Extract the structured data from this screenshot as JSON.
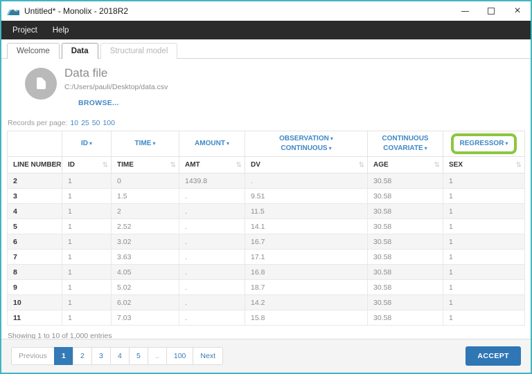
{
  "window": {
    "title": "Untitled* - Monolix - 2018R2"
  },
  "icons": {
    "logo": "monolix-wave-logo",
    "minimize": "minimize-bar",
    "maximize": "maximize-square",
    "close": "×",
    "caret_down": "▾",
    "sort": "⇅",
    "datafile": "document-in-circle"
  },
  "menu": {
    "items": [
      "Project",
      "Help"
    ]
  },
  "tabs": [
    {
      "label": "Welcome",
      "state": "normal"
    },
    {
      "label": "Data",
      "state": "active"
    },
    {
      "label": "Structural model",
      "state": "disabled"
    }
  ],
  "datafile": {
    "title": "Data file",
    "path": "C:/Users/pauli/Desktop/data.csv",
    "browse_label": "BROWSE..."
  },
  "records_per_page": {
    "label": "Records per page:",
    "options": [
      "10",
      "25",
      "50",
      "100"
    ]
  },
  "table": {
    "selectors": [
      {
        "lines": []
      },
      {
        "lines": [
          {
            "text": "ID",
            "caret": true
          }
        ]
      },
      {
        "lines": [
          {
            "text": "TIME",
            "caret": true
          }
        ]
      },
      {
        "lines": [
          {
            "text": "AMOUNT",
            "caret": true
          }
        ]
      },
      {
        "lines": [
          {
            "text": "OBSERVATION",
            "caret": true
          },
          {
            "text": "CONTINUOUS",
            "caret": true
          }
        ]
      },
      {
        "lines": [
          {
            "text": "CONTINUOUS",
            "caret": false
          },
          {
            "text": "COVARIATE",
            "caret": true
          }
        ]
      },
      {
        "lines": [
          {
            "text": "REGRESSOR",
            "caret": true
          }
        ],
        "highlighted": true
      }
    ],
    "columns": [
      {
        "label": "LINE NUMBER",
        "sort": "active"
      },
      {
        "label": "ID",
        "sort": "inactive"
      },
      {
        "label": "TIME",
        "sort": "inactive"
      },
      {
        "label": "AMT",
        "sort": "inactive"
      },
      {
        "label": "DV",
        "sort": "inactive"
      },
      {
        "label": "AGE",
        "sort": "inactive"
      },
      {
        "label": "SEX",
        "sort": "inactive"
      }
    ],
    "rows": [
      [
        "2",
        "1",
        "0",
        "1439.8",
        ".",
        "30.58",
        "1"
      ],
      [
        "3",
        "1",
        "1.5",
        ".",
        "9.51",
        "30.58",
        "1"
      ],
      [
        "4",
        "1",
        "2",
        ".",
        "11.5",
        "30.58",
        "1"
      ],
      [
        "5",
        "1",
        "2.52",
        ".",
        "14.1",
        "30.58",
        "1"
      ],
      [
        "6",
        "1",
        "3.02",
        ".",
        "16.7",
        "30.58",
        "1"
      ],
      [
        "7",
        "1",
        "3.63",
        ".",
        "17.1",
        "30.58",
        "1"
      ],
      [
        "8",
        "1",
        "4.05",
        ".",
        "16.8",
        "30.58",
        "1"
      ],
      [
        "9",
        "1",
        "5.02",
        ".",
        "18.7",
        "30.58",
        "1"
      ],
      [
        "10",
        "1",
        "6.02",
        ".",
        "14.2",
        "30.58",
        "1"
      ],
      [
        "11",
        "1",
        "7.03",
        ".",
        "15.8",
        "30.58",
        "1"
      ]
    ]
  },
  "summary": "Showing 1 to 10 of 1,000 entries",
  "pagination": {
    "items": [
      {
        "label": "Previous",
        "state": "disabled"
      },
      {
        "label": "1",
        "state": "active"
      },
      {
        "label": "2",
        "state": "normal"
      },
      {
        "label": "3",
        "state": "normal"
      },
      {
        "label": "4",
        "state": "normal"
      },
      {
        "label": "5",
        "state": "normal"
      },
      {
        "label": "..",
        "state": "disabled"
      },
      {
        "label": "100",
        "state": "normal"
      },
      {
        "label": "Next",
        "state": "normal"
      }
    ]
  },
  "footer": {
    "accept_label": "ACCEPT"
  },
  "colors": {
    "window_border": "#3eb6c3",
    "menubar_bg": "#2b2b2b",
    "accent_blue": "#337ab7",
    "selector_blue": "#3d87c6",
    "highlight_green": "#8cc63f",
    "stripe_gray": "#f5f5f5"
  }
}
